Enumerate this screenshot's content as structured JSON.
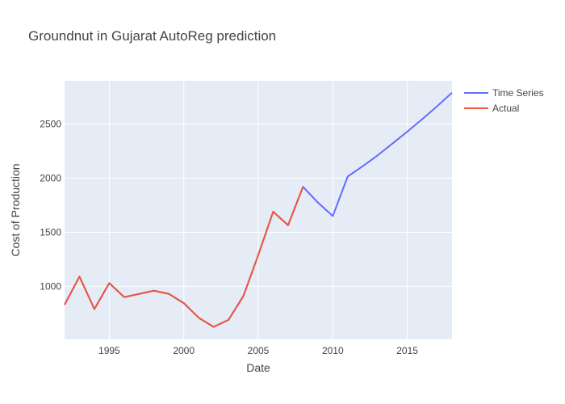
{
  "chart_data": {
    "type": "line",
    "title": "Groundnut in Gujarat AutoReg prediction",
    "xlabel": "Date",
    "ylabel": "Cost of Production",
    "xlim": [
      1992,
      2018
    ],
    "ylim": [
      510,
      2900
    ],
    "x_ticks": [
      1995,
      2000,
      2005,
      2010,
      2015
    ],
    "y_ticks": [
      1000,
      1500,
      2000,
      2500
    ],
    "grid": true,
    "legend_position": "top-right",
    "colors": {
      "plot_bg": "#e5ecf6",
      "grid": "#ffffff"
    },
    "series": [
      {
        "name": "Time Series",
        "color": "#636efa",
        "x": [
          1992,
          1993,
          1994,
          1995,
          1996,
          1997,
          1998,
          1999,
          2000,
          2001,
          2002,
          2003,
          2004,
          2005,
          2006,
          2007,
          2008,
          2009,
          2010,
          2011,
          2012,
          2013,
          2014,
          2015,
          2016,
          2017,
          2018
        ],
        "y": [
          830,
          1090,
          790,
          1030,
          900,
          930,
          960,
          930,
          845,
          710,
          625,
          690,
          910,
          1290,
          1690,
          1565,
          1920,
          1775,
          1650,
          2015,
          2110,
          2210,
          2320,
          2430,
          2545,
          2665,
          2790
        ]
      },
      {
        "name": "Actual",
        "color": "#ef553b",
        "x": [
          1992,
          1993,
          1994,
          1995,
          1996,
          1997,
          1998,
          1999,
          2000,
          2001,
          2002,
          2003,
          2004,
          2005,
          2006,
          2007,
          2008
        ],
        "y": [
          830,
          1090,
          790,
          1030,
          900,
          930,
          960,
          930,
          845,
          710,
          625,
          690,
          910,
          1290,
          1690,
          1565,
          1920
        ]
      }
    ]
  }
}
